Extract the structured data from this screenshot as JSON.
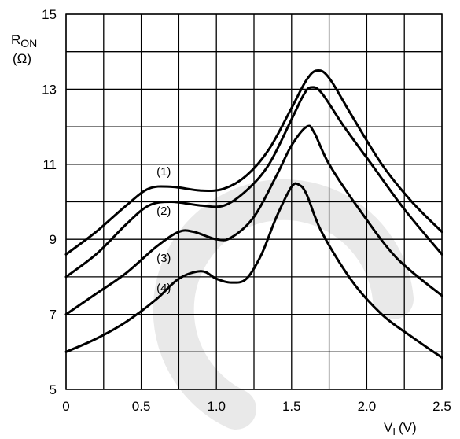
{
  "chart_data": {
    "type": "line",
    "xlabel": {
      "main": "V",
      "sub": "I",
      "unit": "(V)"
    },
    "ylabel": {
      "main": "R",
      "sub": "ON",
      "unit": "(Ω)"
    },
    "xlim": [
      0,
      2.5
    ],
    "ylim": [
      5,
      15
    ],
    "xgrid_step": 0.25,
    "ygrid_step": 1,
    "grid": true,
    "x_ticks": [
      {
        "value": 0,
        "label": "0"
      },
      {
        "value": 0.5,
        "label": "0.5"
      },
      {
        "value": 1.0,
        "label": "1.0"
      },
      {
        "value": 1.5,
        "label": "1.5"
      },
      {
        "value": 2.0,
        "label": "2.0"
      },
      {
        "value": 2.5,
        "label": "2.5"
      }
    ],
    "y_ticks": [
      {
        "value": 5,
        "label": "5"
      },
      {
        "value": 7,
        "label": "7"
      },
      {
        "value": 9,
        "label": "9"
      },
      {
        "value": 11,
        "label": "11"
      },
      {
        "value": 13,
        "label": "13"
      },
      {
        "value": 15,
        "label": "15"
      }
    ],
    "series": [
      {
        "name": "(1)",
        "label_pos": [
          0.65,
          10.7
        ],
        "points": [
          [
            0,
            8.6
          ],
          [
            0.2,
            9.2
          ],
          [
            0.4,
            9.9
          ],
          [
            0.55,
            10.35
          ],
          [
            0.7,
            10.4
          ],
          [
            0.9,
            10.3
          ],
          [
            1.05,
            10.35
          ],
          [
            1.2,
            10.7
          ],
          [
            1.35,
            11.4
          ],
          [
            1.5,
            12.5
          ],
          [
            1.6,
            13.25
          ],
          [
            1.67,
            13.5
          ],
          [
            1.75,
            13.3
          ],
          [
            1.9,
            12.3
          ],
          [
            2.1,
            11.0
          ],
          [
            2.3,
            10.0
          ],
          [
            2.5,
            9.2
          ]
        ]
      },
      {
        "name": "(2)",
        "label_pos": [
          0.65,
          9.65
        ],
        "points": [
          [
            0,
            8.0
          ],
          [
            0.2,
            8.6
          ],
          [
            0.4,
            9.4
          ],
          [
            0.55,
            9.9
          ],
          [
            0.7,
            10.0
          ],
          [
            0.9,
            9.9
          ],
          [
            1.05,
            9.9
          ],
          [
            1.2,
            10.3
          ],
          [
            1.35,
            11.0
          ],
          [
            1.5,
            12.2
          ],
          [
            1.58,
            12.85
          ],
          [
            1.63,
            13.05
          ],
          [
            1.7,
            12.9
          ],
          [
            1.85,
            12.0
          ],
          [
            2.05,
            10.9
          ],
          [
            2.25,
            9.8
          ],
          [
            2.5,
            8.6
          ]
        ]
      },
      {
        "name": "(3)",
        "label_pos": [
          0.65,
          8.4
        ],
        "points": [
          [
            0,
            7.0
          ],
          [
            0.2,
            7.55
          ],
          [
            0.4,
            8.1
          ],
          [
            0.6,
            8.8
          ],
          [
            0.75,
            9.2
          ],
          [
            0.85,
            9.2
          ],
          [
            1.0,
            9.0
          ],
          [
            1.1,
            9.05
          ],
          [
            1.25,
            9.6
          ],
          [
            1.4,
            10.7
          ],
          [
            1.5,
            11.5
          ],
          [
            1.6,
            12.0
          ],
          [
            1.65,
            11.85
          ],
          [
            1.75,
            11.0
          ],
          [
            1.95,
            9.8
          ],
          [
            2.2,
            8.5
          ],
          [
            2.5,
            7.5
          ]
        ]
      },
      {
        "name": "(4)",
        "label_pos": [
          0.65,
          7.6
        ],
        "points": [
          [
            0,
            6.0
          ],
          [
            0.2,
            6.35
          ],
          [
            0.4,
            6.8
          ],
          [
            0.6,
            7.4
          ],
          [
            0.75,
            7.95
          ],
          [
            0.9,
            8.15
          ],
          [
            1.0,
            7.95
          ],
          [
            1.1,
            7.85
          ],
          [
            1.2,
            7.95
          ],
          [
            1.3,
            8.6
          ],
          [
            1.4,
            9.6
          ],
          [
            1.5,
            10.4
          ],
          [
            1.55,
            10.45
          ],
          [
            1.6,
            10.2
          ],
          [
            1.7,
            9.2
          ],
          [
            1.9,
            7.9
          ],
          [
            2.1,
            7.0
          ],
          [
            2.3,
            6.4
          ],
          [
            2.5,
            5.85
          ]
        ]
      }
    ]
  }
}
